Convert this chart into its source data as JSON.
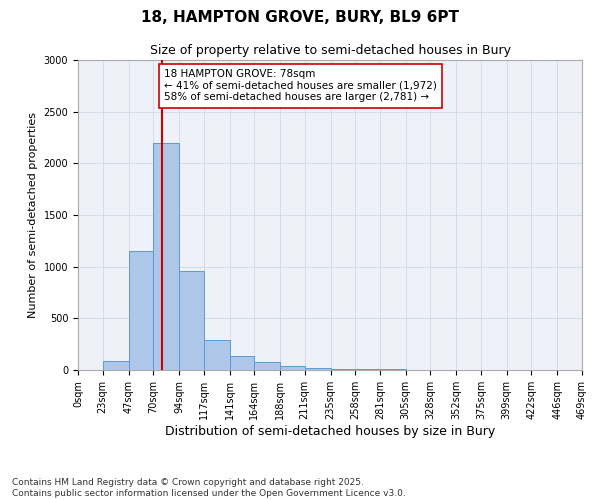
{
  "title1": "18, HAMPTON GROVE, BURY, BL9 6PT",
  "title2": "Size of property relative to semi-detached houses in Bury",
  "xlabel": "Distribution of semi-detached houses by size in Bury",
  "ylabel": "Number of semi-detached properties",
  "footnote": "Contains HM Land Registry data © Crown copyright and database right 2025.\nContains public sector information licensed under the Open Government Licence v3.0.",
  "bin_labels": [
    "0sqm",
    "23sqm",
    "47sqm",
    "70sqm",
    "94sqm",
    "117sqm",
    "141sqm",
    "164sqm",
    "188sqm",
    "211sqm",
    "235sqm",
    "258sqm",
    "281sqm",
    "305sqm",
    "328sqm",
    "352sqm",
    "375sqm",
    "399sqm",
    "422sqm",
    "446sqm",
    "469sqm"
  ],
  "bin_edges": [
    0,
    23,
    47,
    70,
    94,
    117,
    141,
    164,
    188,
    211,
    235,
    258,
    281,
    305,
    328,
    352,
    375,
    399,
    422,
    446,
    469
  ],
  "bar_heights": [
    0,
    90,
    1150,
    2200,
    960,
    290,
    140,
    75,
    40,
    15,
    5,
    5,
    5,
    0,
    0,
    0,
    0,
    0,
    0,
    0
  ],
  "bar_color": "#aec6e8",
  "bar_edgecolor": "#5b9bd5",
  "property_size": 78,
  "vline_color": "#cc0000",
  "annotation_line1": "18 HAMPTON GROVE: 78sqm",
  "annotation_line2": "← 41% of semi-detached houses are smaller (1,972)",
  "annotation_line3": "58% of semi-detached houses are larger (2,781) →",
  "annotation_box_edgecolor": "#cc0000",
  "annotation_box_facecolor": "#ffffff",
  "ylim": [
    0,
    3000
  ],
  "yticks": [
    0,
    500,
    1000,
    1500,
    2000,
    2500,
    3000
  ],
  "grid_color": "#d0d8e8",
  "background_color": "#eef2f8",
  "plot_background": "#ffffff",
  "title1_fontsize": 11,
  "title2_fontsize": 9,
  "xlabel_fontsize": 9,
  "ylabel_fontsize": 8,
  "tick_fontsize": 7,
  "annotation_fontsize": 7.5,
  "footnote_fontsize": 6.5
}
